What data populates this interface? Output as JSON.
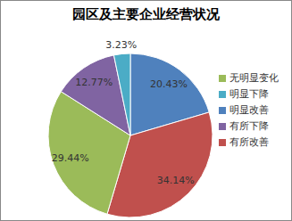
{
  "chart_data": {
    "type": "pie",
    "title": "园区及主要企业经营状况",
    "categories": [
      "明显改善",
      "有所改善",
      "无明显变化",
      "有所下降",
      "明显下降"
    ],
    "values": [
      20.43,
      34.14,
      29.44,
      12.77,
      3.23
    ],
    "value_labels": [
      "20.43%",
      "34.14%",
      "29.44%",
      "12.77%",
      "3.23%"
    ],
    "colors": [
      "#4f81bd",
      "#c0504d",
      "#9bbb59",
      "#8064a2",
      "#4bacc6"
    ],
    "legend": "right",
    "data_labels": true
  }
}
